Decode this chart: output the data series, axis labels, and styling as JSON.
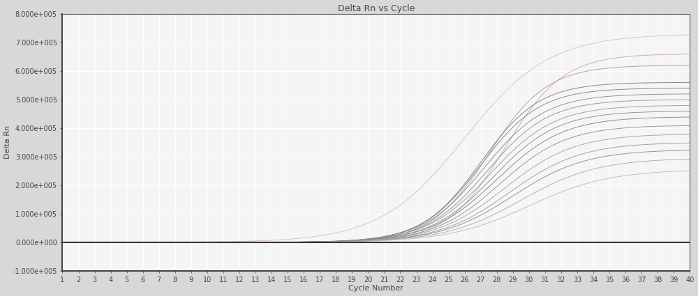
{
  "title": "Delta Rn vs Cycle",
  "xlabel": "Cycle Number",
  "ylabel": "Delta Rn",
  "xlim": [
    1,
    40
  ],
  "ylim": [
    -100000.0,
    800000.0
  ],
  "yticks": [
    -100000.0,
    0.0,
    100000.0,
    200000.0,
    300000.0,
    400000.0,
    500000.0,
    600000.0,
    700000.0,
    800000.0
  ],
  "xticks": [
    1,
    2,
    3,
    4,
    5,
    6,
    7,
    8,
    9,
    10,
    11,
    12,
    13,
    14,
    15,
    16,
    17,
    18,
    19,
    20,
    21,
    22,
    23,
    24,
    25,
    26,
    27,
    28,
    29,
    30,
    31,
    32,
    33,
    34,
    35,
    36,
    37,
    38,
    39,
    40
  ],
  "background_color": "#d8d8d8",
  "plot_bg_color": "#f5f5f5",
  "grid_color": "#ffffff",
  "title_fontsize": 9,
  "axis_label_fontsize": 8,
  "tick_fontsize": 7,
  "threshold_y": 0.0,
  "curves": [
    {
      "midpoint": 28.5,
      "slope": 0.55,
      "max_val": 660000,
      "color": "#c8a0c8",
      "lw": 0.7
    },
    {
      "midpoint": 27.5,
      "slope": 0.55,
      "max_val": 620000,
      "color": "#b090b0",
      "lw": 0.7
    },
    {
      "midpoint": 27.0,
      "slope": 0.55,
      "max_val": 560000,
      "color": "#7a7a7a",
      "lw": 0.7
    },
    {
      "midpoint": 27.0,
      "slope": 0.54,
      "max_val": 540000,
      "color": "#808080",
      "lw": 0.7
    },
    {
      "midpoint": 27.2,
      "slope": 0.52,
      "max_val": 520000,
      "color": "#888888",
      "lw": 0.7
    },
    {
      "midpoint": 27.4,
      "slope": 0.52,
      "max_val": 500000,
      "color": "#909090",
      "lw": 0.7
    },
    {
      "midpoint": 27.6,
      "slope": 0.5,
      "max_val": 480000,
      "color": "#999999",
      "lw": 0.7
    },
    {
      "midpoint": 27.8,
      "slope": 0.5,
      "max_val": 460000,
      "color": "#888888",
      "lw": 0.7
    },
    {
      "midpoint": 28.0,
      "slope": 0.48,
      "max_val": 440000,
      "color": "#808080",
      "lw": 0.7
    },
    {
      "midpoint": 28.2,
      "slope": 0.48,
      "max_val": 410000,
      "color": "#909090",
      "lw": 0.7
    },
    {
      "midpoint": 28.5,
      "slope": 0.46,
      "max_val": 380000,
      "color": "#a0a0a0",
      "lw": 0.7
    },
    {
      "midpoint": 28.8,
      "slope": 0.45,
      "max_val": 350000,
      "color": "#989898",
      "lw": 0.7
    },
    {
      "midpoint": 29.0,
      "slope": 0.44,
      "max_val": 325000,
      "color": "#888888",
      "lw": 0.7
    },
    {
      "midpoint": 29.5,
      "slope": 0.42,
      "max_val": 295000,
      "color": "#aaaaaa",
      "lw": 0.7
    },
    {
      "midpoint": 30.0,
      "slope": 0.4,
      "max_val": 255000,
      "color": "#b8b8b8",
      "lw": 0.7
    },
    {
      "midpoint": 26.0,
      "slope": 0.38,
      "max_val": 730000,
      "color": "#d8b8d8",
      "lw": 0.7
    }
  ]
}
